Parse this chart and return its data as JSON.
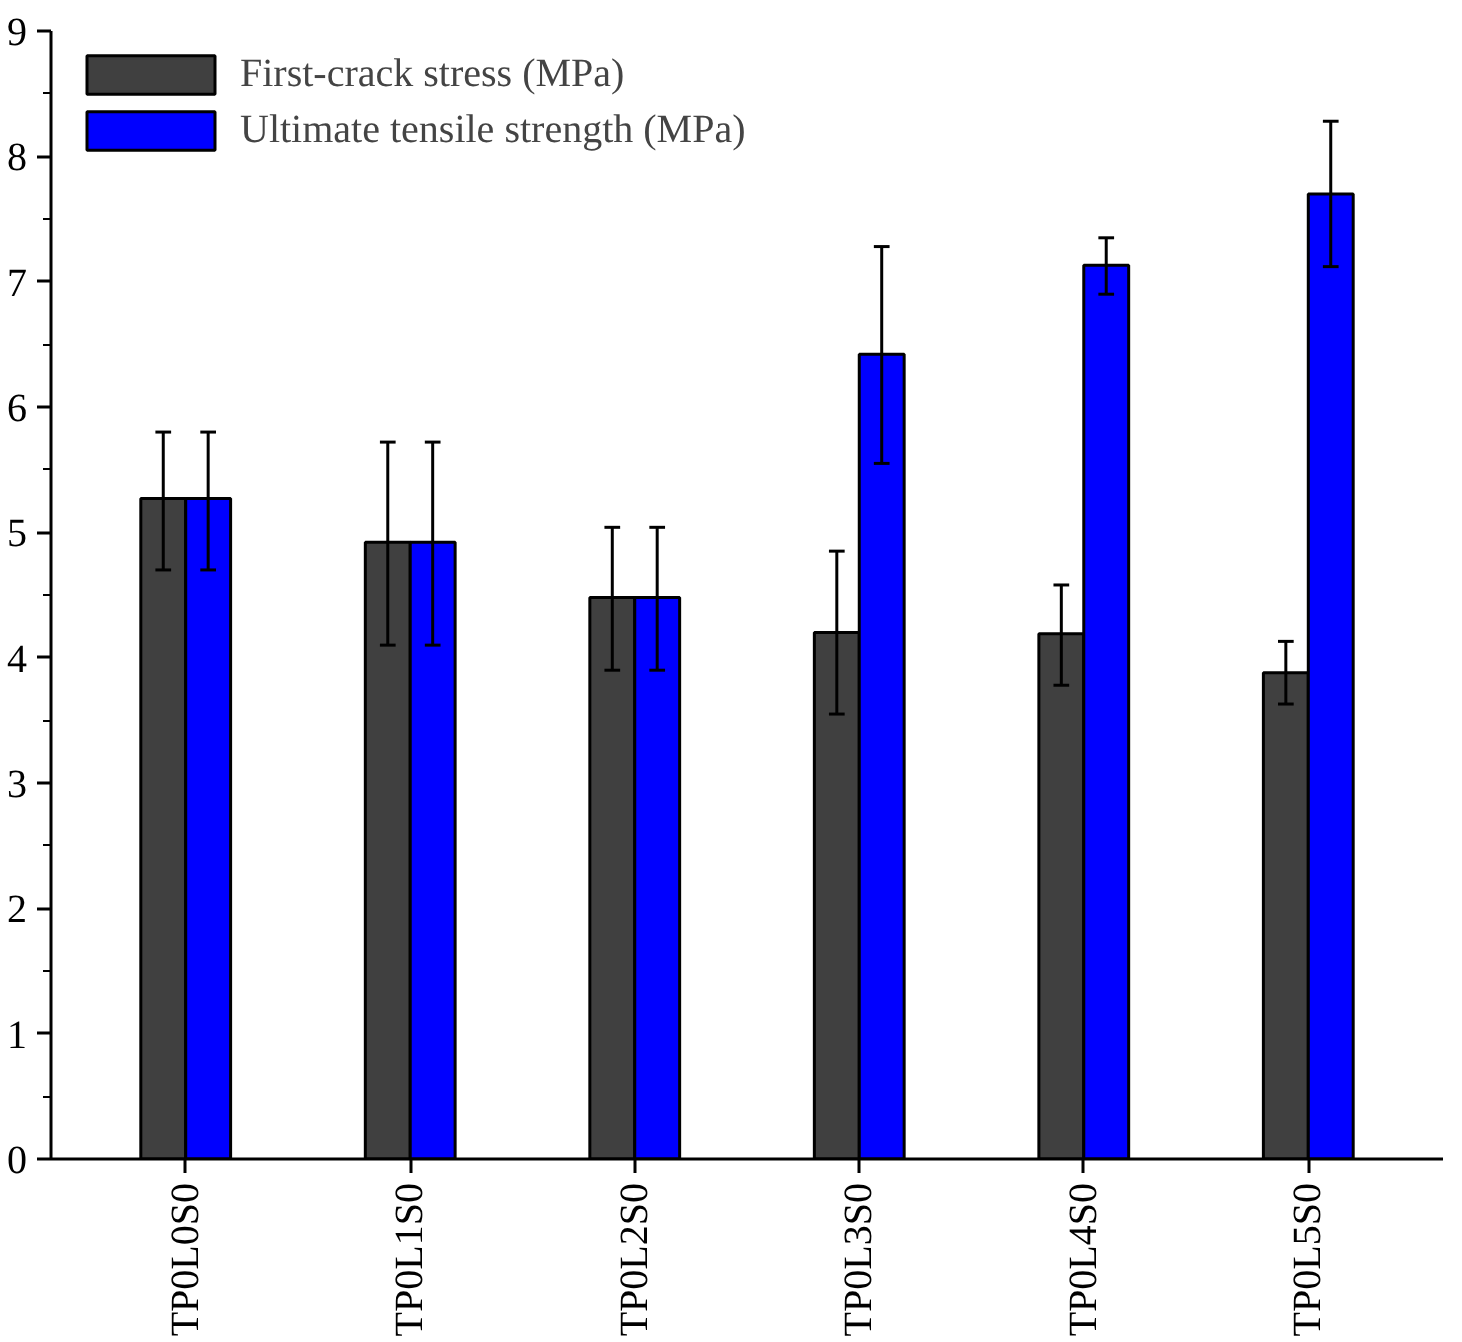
{
  "chart_data": {
    "type": "bar",
    "categories": [
      "TP0L0S0",
      "TP0L1S0",
      "TP0L2S0",
      "TP0L3S0",
      "TP0L4S0",
      "TP0L5S0"
    ],
    "series": [
      {
        "name": "First-crack stress (MPa)",
        "color": "#404040",
        "values": [
          5.27,
          4.92,
          4.48,
          4.2,
          4.19,
          3.88
        ],
        "errors": [
          [
            4.7,
            5.8
          ],
          [
            4.1,
            5.72
          ],
          [
            3.9,
            5.04
          ],
          [
            3.55,
            4.85
          ],
          [
            3.78,
            4.58
          ],
          [
            3.63,
            4.13
          ]
        ]
      },
      {
        "name": "Ultimate tensile strength (MPa)",
        "color": "#0000ff",
        "values": [
          5.27,
          4.92,
          4.48,
          6.42,
          7.13,
          7.7
        ],
        "errors": [
          [
            4.7,
            5.8
          ],
          [
            4.1,
            5.72
          ],
          [
            3.9,
            5.04
          ],
          [
            5.55,
            7.28
          ],
          [
            6.9,
            7.35
          ],
          [
            7.12,
            8.28
          ]
        ]
      }
    ],
    "ylim": [
      0,
      9
    ],
    "yticks": [
      0,
      1,
      2,
      3,
      4,
      5,
      6,
      7,
      8,
      9
    ],
    "grid": false,
    "legend": "top left"
  }
}
